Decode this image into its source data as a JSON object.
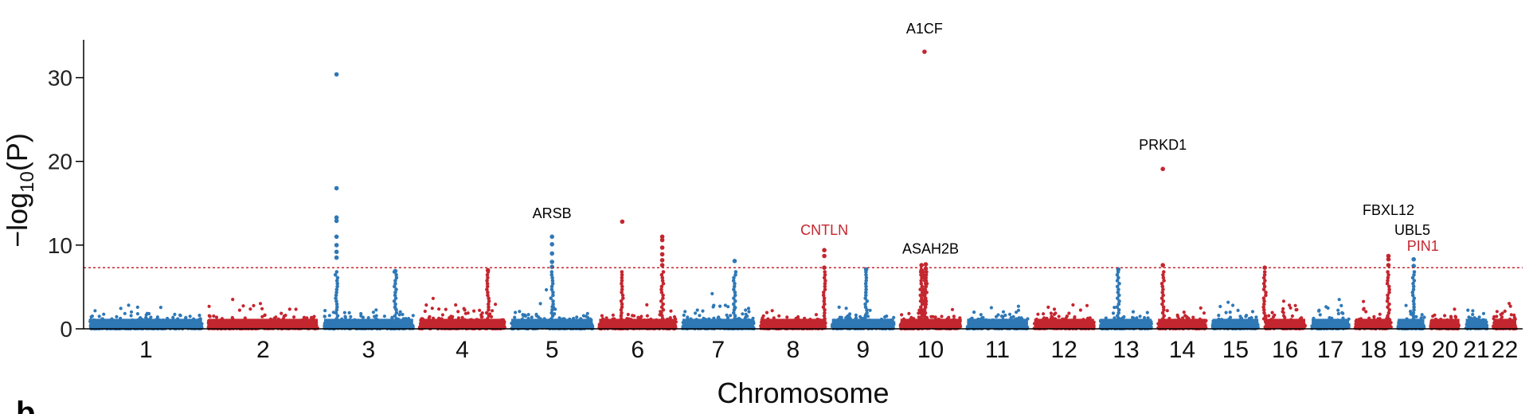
{
  "panel_letter": "b",
  "colors": {
    "blue": "#2f78b6",
    "red": "#c4262f",
    "threshold": "#c4262f",
    "axis": "#000000"
  },
  "chart_data": {
    "type": "scatter",
    "subtype": "manhattan",
    "title": "",
    "xlabel": "Chromosome",
    "ylabel": "−log10(P)",
    "ylim": [
      0,
      35
    ],
    "yticks": [
      0,
      10,
      20,
      30
    ],
    "threshold": 7.3,
    "grid": false,
    "chromosomes": [
      {
        "label": "1",
        "size": 249,
        "color": "blue"
      },
      {
        "label": "2",
        "size": 243,
        "color": "red"
      },
      {
        "label": "3",
        "size": 198,
        "color": "blue"
      },
      {
        "label": "4",
        "size": 190,
        "color": "red"
      },
      {
        "label": "5",
        "size": 181,
        "color": "blue"
      },
      {
        "label": "6",
        "size": 171,
        "color": "red"
      },
      {
        "label": "7",
        "size": 159,
        "color": "blue"
      },
      {
        "label": "8",
        "size": 145,
        "color": "red"
      },
      {
        "label": "9",
        "size": 138,
        "color": "blue"
      },
      {
        "label": "10",
        "size": 134,
        "color": "red"
      },
      {
        "label": "11",
        "size": 135,
        "color": "blue"
      },
      {
        "label": "12",
        "size": 133,
        "color": "red"
      },
      {
        "label": "13",
        "size": 114,
        "color": "blue"
      },
      {
        "label": "14",
        "size": 107,
        "color": "red"
      },
      {
        "label": "15",
        "size": 102,
        "color": "blue"
      },
      {
        "label": "16",
        "size": 90,
        "color": "red"
      },
      {
        "label": "17",
        "size": 83,
        "color": "blue"
      },
      {
        "label": "18",
        "size": 80,
        "color": "red"
      },
      {
        "label": "19",
        "size": 59,
        "color": "blue"
      },
      {
        "label": "20",
        "size": 64,
        "color": "red"
      },
      {
        "label": "21",
        "size": 47,
        "color": "blue"
      },
      {
        "label": "22",
        "size": 51,
        "color": "red"
      }
    ],
    "peaks": [
      {
        "chr": "3",
        "pos": 0.14,
        "values": [
          30.4,
          16.8,
          13.3,
          12.9,
          11.0,
          10.0,
          9.2,
          8.5
        ]
      },
      {
        "chr": "5",
        "pos": 0.5,
        "values": [
          11.0,
          10.1,
          9.0,
          8.0,
          7.4
        ]
      },
      {
        "chr": "6",
        "pos": 0.3,
        "values": [
          12.8
        ]
      },
      {
        "chr": "6",
        "pos": 0.82,
        "values": [
          11.0,
          10.6,
          9.7,
          8.9,
          8.2,
          7.6
        ]
      },
      {
        "chr": "7",
        "pos": 0.73,
        "values": [
          8.1
        ]
      },
      {
        "chr": "8",
        "pos": 0.98,
        "values": [
          9.4,
          8.7,
          7.3
        ]
      },
      {
        "chr": "9",
        "pos": 0.55,
        "values": [
          7.1
        ]
      },
      {
        "chr": "10",
        "pos": 0.4,
        "values": [
          33.1
        ]
      },
      {
        "chr": "10",
        "pos": 0.35,
        "values": [
          7.6,
          7.0
        ]
      },
      {
        "chr": "10",
        "pos": 0.42,
        "values": [
          7.7,
          7.2
        ]
      },
      {
        "chr": "13",
        "pos": 0.35,
        "values": [
          7.1
        ]
      },
      {
        "chr": "14",
        "pos": 0.1,
        "values": [
          19.1,
          7.6
        ]
      },
      {
        "chr": "16",
        "pos": 0.0,
        "values": [
          7.3
        ]
      },
      {
        "chr": "18",
        "pos": 0.92,
        "values": [
          8.7,
          8.3,
          7.6
        ]
      },
      {
        "chr": "19",
        "pos": 0.6,
        "values": [
          8.3,
          7.5
        ]
      },
      {
        "chr": "3",
        "pos": 0.8,
        "values": [
          6.9
        ]
      },
      {
        "chr": "4",
        "pos": 0.8,
        "values": [
          7.0
        ]
      }
    ],
    "annotations": [
      {
        "text": "A1CF",
        "chr": "10",
        "pos": 0.4,
        "value": 33.1,
        "label_y": 35.3,
        "color": "#000000"
      },
      {
        "text": "PRKD1",
        "chr": "14",
        "pos": 0.1,
        "value": 19.1,
        "label_y": 21.4,
        "color": "#000000"
      },
      {
        "text": "ARSB",
        "chr": "5",
        "pos": 0.5,
        "value": 11.0,
        "label_y": 13.2,
        "color": "#000000"
      },
      {
        "text": "CNTLN",
        "chr": "8",
        "pos": 0.98,
        "value": 9.4,
        "label_y": 11.2,
        "color": "#c4262f"
      },
      {
        "text": "ASAH2B",
        "chr": "10",
        "pos": 0.5,
        "value": 7.7,
        "label_y": 9.0,
        "color": "#000000"
      },
      {
        "text": "FBXL12",
        "chr": "18",
        "pos": 0.92,
        "value": 8.7,
        "label_y": 13.6,
        "color": "#000000"
      },
      {
        "text": "UBL5",
        "chr": "19",
        "pos": 0.55,
        "value": 8.3,
        "label_y": 11.2,
        "color": "#000000"
      },
      {
        "text": "PIN1",
        "chr": "19",
        "pos": 0.95,
        "value": 8.3,
        "label_y": 9.3,
        "color": "#c4262f"
      }
    ]
  }
}
